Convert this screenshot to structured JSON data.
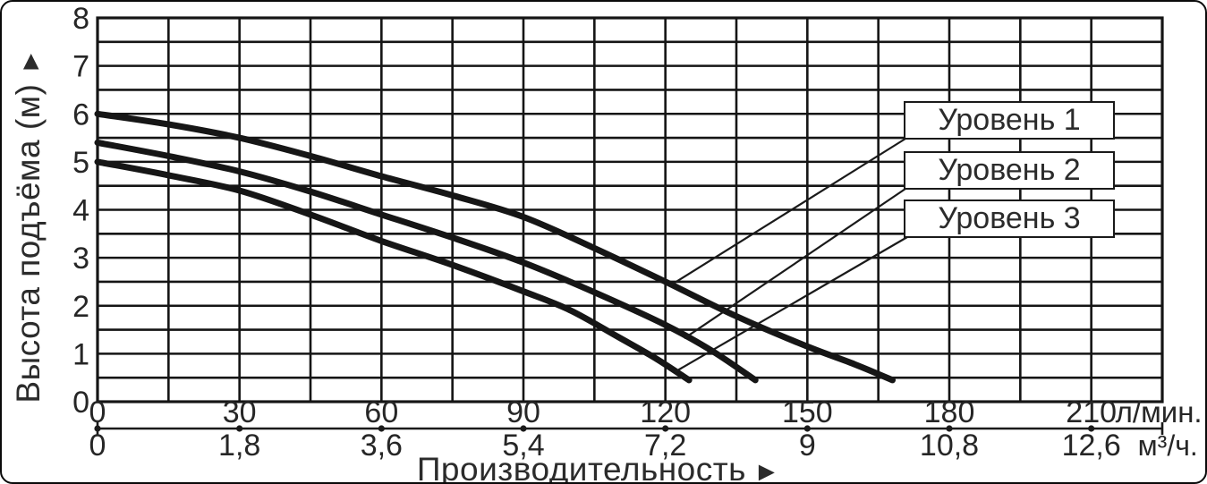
{
  "page": {
    "background": "#ffffff",
    "border_color": "#0a0a0a"
  },
  "chart_data": {
    "type": "line",
    "title": "",
    "ylabel": "Высота подъёма (м)",
    "ylabel_arrow": "▲",
    "xlabel": "Производительность",
    "xlabel_arrow": "►",
    "grid": "on",
    "legend_position": "top-right",
    "y_axis": {
      "min": 0,
      "max": 8,
      "major_step": 1,
      "minor_step": 0.5,
      "ticks": [
        0,
        1,
        2,
        3,
        4,
        5,
        6,
        7,
        8
      ]
    },
    "x_axis_primary": {
      "unit": "л/мин.",
      "min": 0,
      "max": 225,
      "minor_step": 15,
      "ticks": [
        0,
        30,
        60,
        90,
        120,
        150,
        180,
        210
      ]
    },
    "x_axis_secondary": {
      "unit": "м³/ч.",
      "tick_labels": [
        "0",
        "1,8",
        "3,6",
        "5,4",
        "7,2",
        "9",
        "10,8",
        "12,6"
      ]
    },
    "legend": {
      "entries": [
        "Уровень 1",
        "Уровень 2",
        "Уровень 3"
      ]
    },
    "series": [
      {
        "name": "Уровень 1",
        "points": [
          [
            0,
            6.0
          ],
          [
            15,
            5.78
          ],
          [
            30,
            5.5
          ],
          [
            45,
            5.12
          ],
          [
            60,
            4.7
          ],
          [
            75,
            4.3
          ],
          [
            90,
            3.85
          ],
          [
            105,
            3.2
          ],
          [
            120,
            2.5
          ],
          [
            135,
            1.78
          ],
          [
            150,
            1.15
          ],
          [
            160,
            0.78
          ],
          [
            168,
            0.45
          ]
        ]
      },
      {
        "name": "Уровень 2",
        "points": [
          [
            0,
            5.4
          ],
          [
            15,
            5.12
          ],
          [
            30,
            4.8
          ],
          [
            45,
            4.38
          ],
          [
            60,
            3.9
          ],
          [
            75,
            3.42
          ],
          [
            90,
            2.9
          ],
          [
            105,
            2.28
          ],
          [
            120,
            1.6
          ],
          [
            130,
            1.05
          ],
          [
            139,
            0.45
          ]
        ]
      },
      {
        "name": "Уровень 3",
        "points": [
          [
            0,
            5.0
          ],
          [
            15,
            4.72
          ],
          [
            30,
            4.4
          ],
          [
            45,
            3.9
          ],
          [
            60,
            3.35
          ],
          [
            75,
            2.85
          ],
          [
            90,
            2.3
          ],
          [
            100,
            1.9
          ],
          [
            110,
            1.35
          ],
          [
            118,
            0.9
          ],
          [
            125,
            0.45
          ]
        ]
      }
    ],
    "colors": {
      "curve": "#161616",
      "grid": "#151515",
      "text": "#262626"
    }
  }
}
